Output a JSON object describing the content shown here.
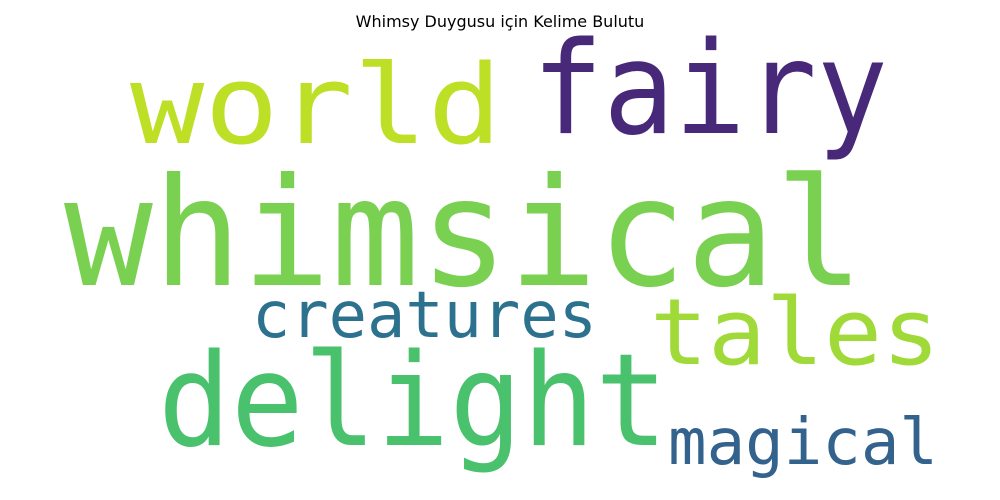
{
  "chart_data": {
    "type": "wordcloud",
    "title": "Whimsy Duygusu için Kelime Bulutu",
    "words": [
      {
        "text": "whimsical",
        "color": "#7ad151"
      },
      {
        "text": "fairy",
        "color": "#482878"
      },
      {
        "text": "world",
        "color": "#bddf26"
      },
      {
        "text": "delight",
        "color": "#4ac16d"
      },
      {
        "text": "tales",
        "color": "#a0da39"
      },
      {
        "text": "creatures",
        "color": "#2c728e"
      },
      {
        "text": "magical",
        "color": "#33638d"
      }
    ]
  }
}
